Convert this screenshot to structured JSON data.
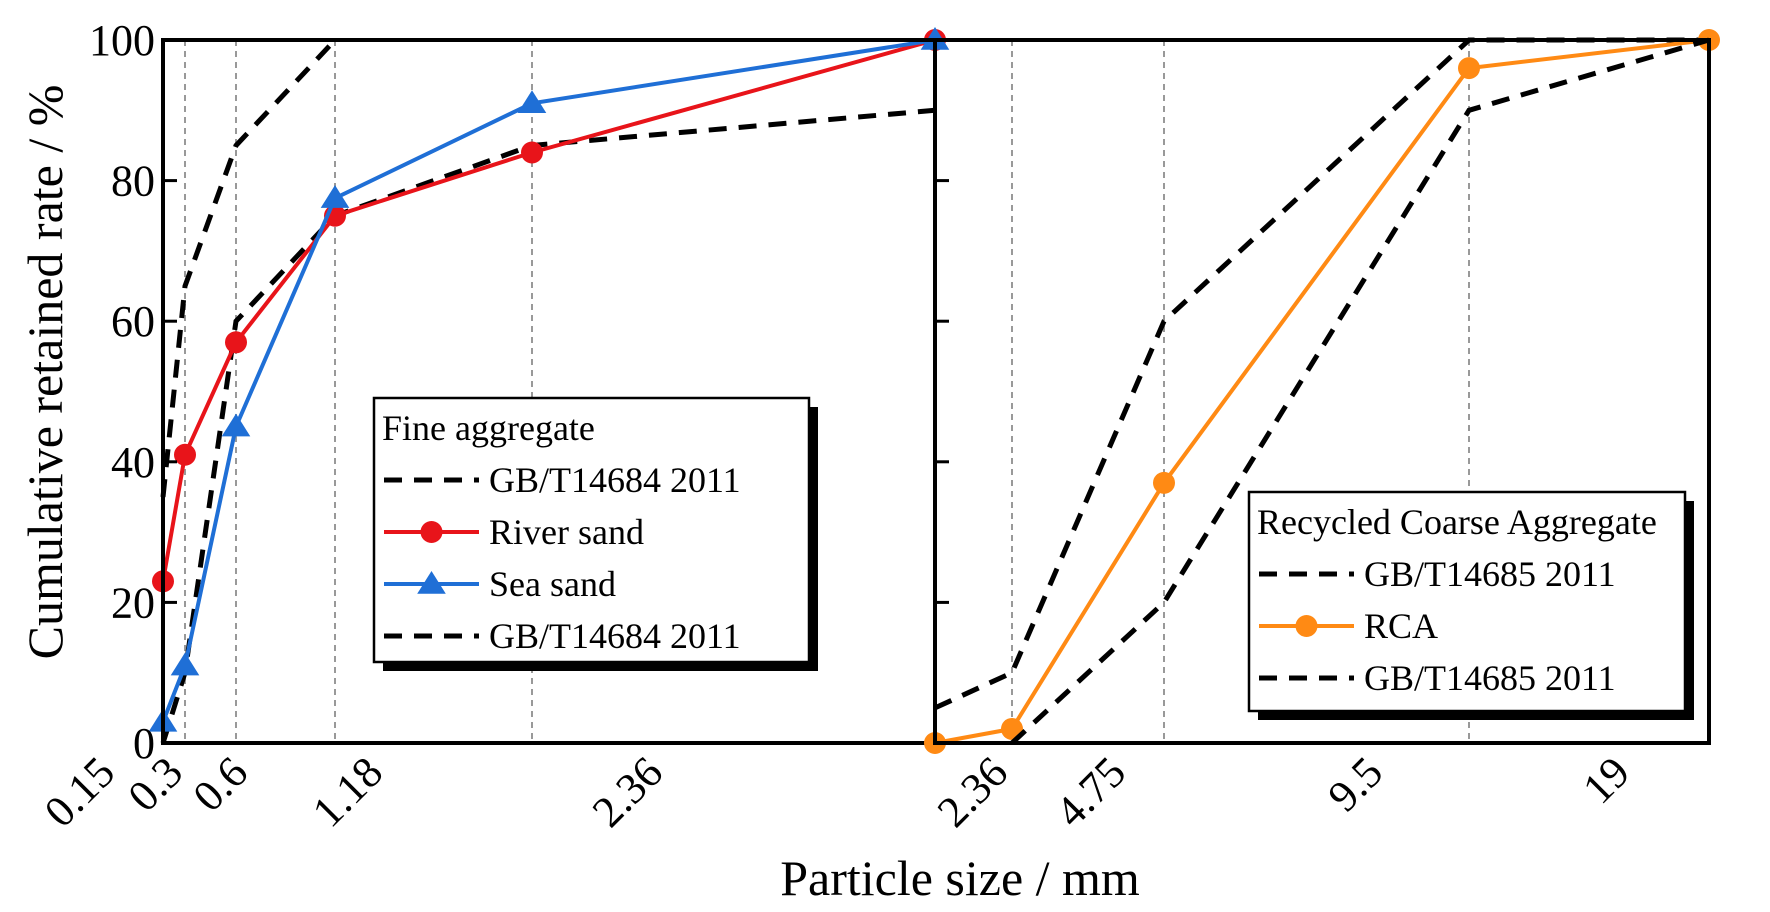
{
  "figure": {
    "xlabel": "Particle size / mm",
    "ylabel": "Cumulative retained rate / %"
  },
  "chart_data": [
    {
      "type": "line",
      "panel": "left",
      "title": "",
      "ylim": [
        0,
        100
      ],
      "yticks": [
        0,
        20,
        40,
        60,
        80,
        100
      ],
      "xticks": [
        "0.15",
        "0.3",
        "0.6",
        "1.18",
        "2.36"
      ],
      "x_scale_note": "categorical positions, not proportional to sieve size",
      "legend_title": "Fine aggregate",
      "legend_position": "center",
      "series": [
        {
          "name": "GB/T14684 2011",
          "style": "dashed",
          "color": "#000000",
          "x": [
            0,
            0.15,
            0.45,
            1.0,
            2.1,
            4.2
          ],
          "y": [
            0,
            10,
            60,
            75,
            85,
            90
          ]
        },
        {
          "name": "River sand",
          "style": "solid",
          "marker": "circle",
          "color": "#e8141a",
          "x": [
            0,
            0.15,
            0.45,
            1.0,
            2.1,
            4.2
          ],
          "y": [
            23,
            41,
            57,
            75,
            84,
            100
          ]
        },
        {
          "name": "Sea sand",
          "style": "solid",
          "marker": "triangle",
          "color": "#1f6fd6",
          "x": [
            0,
            0.15,
            0.45,
            1.0,
            2.1,
            4.2
          ],
          "y": [
            3,
            11,
            45,
            77.5,
            91,
            100
          ]
        },
        {
          "name": "GB/T14684 2011",
          "style": "dashed",
          "color": "#000000",
          "x": [
            0,
            0.15,
            0.45,
            1.0
          ],
          "y": [
            35,
            65,
            85,
            100
          ]
        }
      ]
    },
    {
      "type": "line",
      "panel": "right",
      "title": "",
      "ylim": [
        0,
        100
      ],
      "xticks": [
        "2.36",
        "4.75",
        "9.5",
        "19"
      ],
      "x_scale_note": "categorical positions, not proportional to sieve size",
      "legend_title": "Recycled Coarse Aggregate",
      "legend_position": "bottom-right",
      "series": [
        {
          "name": "GB/T14685 2011",
          "style": "dashed",
          "color": "#000000",
          "x": [
            0,
            0.33,
            1.0,
            2.35,
            3.35
          ],
          "y": [
            5,
            10,
            60,
            100,
            100
          ]
        },
        {
          "name": "RCA",
          "style": "solid",
          "marker": "circle",
          "color": "#ff8a14",
          "x": [
            0,
            0.33,
            1.0,
            2.35,
            3.35
          ],
          "y": [
            0,
            2,
            37,
            96,
            100
          ]
        },
        {
          "name": "GB/T14685 2011",
          "style": "dashed",
          "color": "#000000",
          "x": [
            0.33,
            1.0,
            2.35,
            3.35
          ],
          "y": [
            0,
            20,
            90,
            100
          ]
        }
      ]
    }
  ]
}
